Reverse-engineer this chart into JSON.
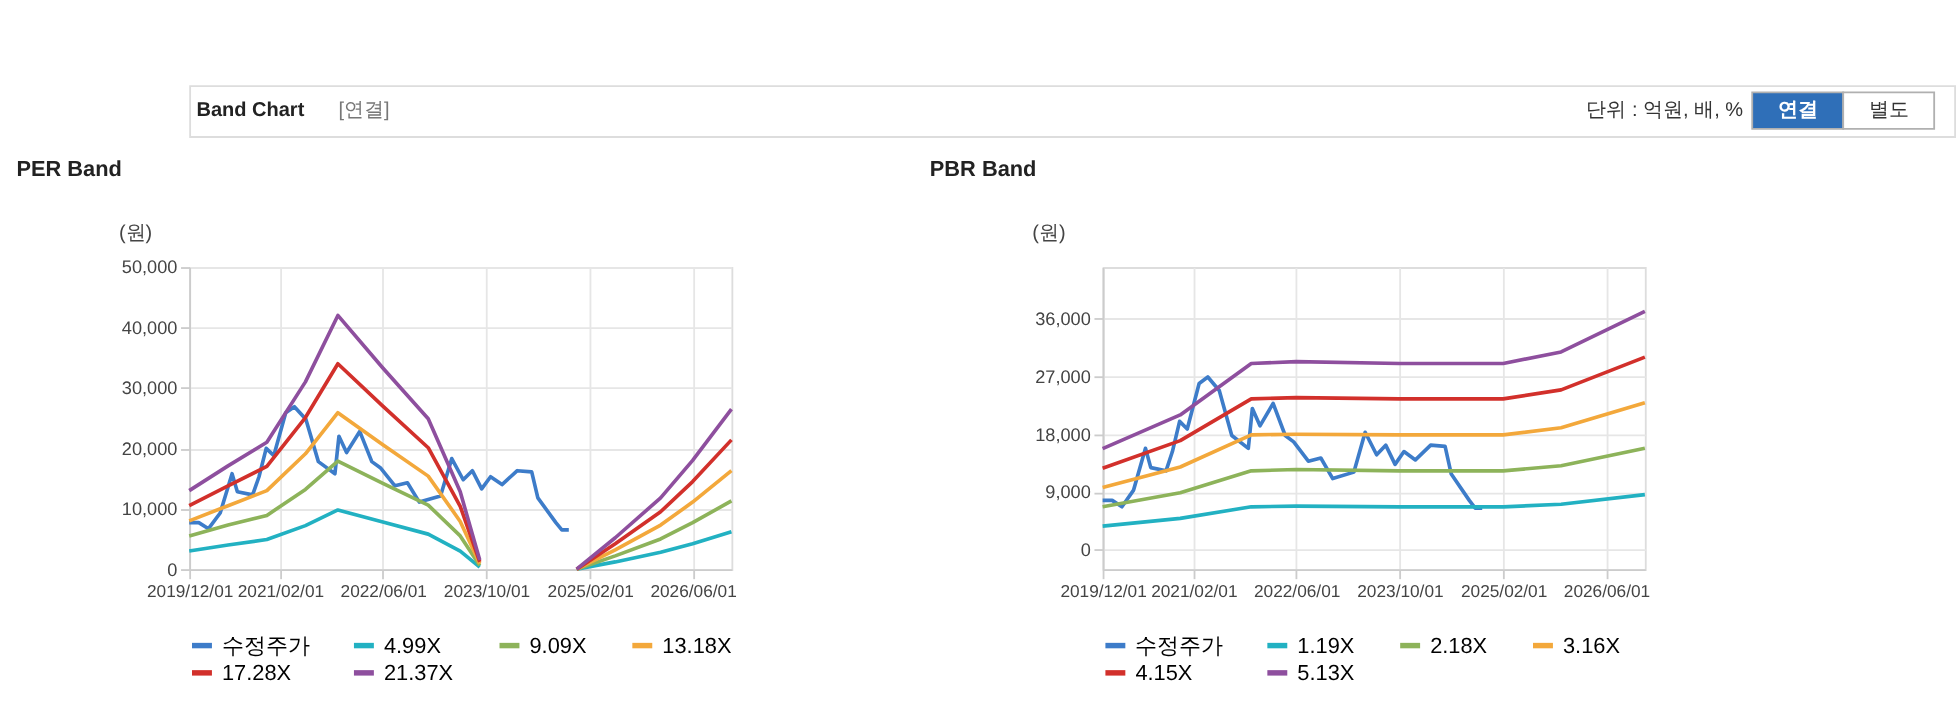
{
  "chart_data": [
    {
      "type": "line",
      "title": "PER Band",
      "ylabel": "(원)",
      "annotations": [
        "Band Chart",
        "[연결]",
        "단위 : 억원, 배, %",
        "연결",
        "별도"
      ],
      "x": [
        "2019-12-01",
        "2020-06-01",
        "2020-12-01",
        "2021-06-01",
        "2021-11-01",
        "2022-06-01",
        "2023-01-01",
        "2023-06-01",
        "2023-09-01",
        "2024-04-01",
        "2024-12-01",
        "2025-06-01",
        "2026-01-01",
        "2026-06-01",
        "2026-12-01"
      ],
      "series": [
        {
          "name": "수정주가",
          "color": "#3d7cc9",
          "x": [
            "2019-12-01",
            "2020-01-15",
            "2020-03-01",
            "2020-04-25",
            "2020-06-20",
            "2020-07-15",
            "2020-09-25",
            "2020-10-25",
            "2020-11-28",
            "2021-01-03",
            "2021-02-28",
            "2021-04-10",
            "2021-06-03",
            "2021-08-01",
            "2021-10-18",
            "2021-11-06",
            "2021-12-12",
            "2022-02-12",
            "2022-04-10",
            "2022-05-20",
            "2022-07-28",
            "2022-09-25",
            "2022-11-20",
            "2023-02-28",
            "2023-04-22",
            "2023-06-15",
            "2023-07-28",
            "2023-09-10",
            "2023-10-22",
            "2023-12-15",
            "2024-02-25",
            "2024-05-03",
            "2024-06-01",
            "2024-08-25",
            "2024-09-22",
            "2024-10-25"
          ],
          "values": [
            7700,
            7700,
            6700,
            9300,
            15800,
            12800,
            12300,
            15300,
            20000,
            18800,
            25900,
            26900,
            24800,
            17800,
            15800,
            22000,
            19300,
            22800,
            17800,
            16800,
            13800,
            14300,
            11100,
            12100,
            18300,
            14800,
            16300,
            13300,
            15300,
            14000,
            16300,
            16100,
            11800,
            7700,
            6500,
            6500
          ]
        },
        {
          "name": "4.99X",
          "color": "#22b1c2",
          "values": [
            3000,
            4000,
            4900,
            7200,
            9800,
            7800,
            5800,
            3000,
            350,
            null,
            0,
            1200,
            2800,
            4200,
            6200
          ]
        },
        {
          "name": "9.09X",
          "color": "#8db35a",
          "values": [
            5500,
            7300,
            8900,
            13200,
            17900,
            14200,
            10600,
            5500,
            600,
            null,
            0,
            2200,
            5000,
            7700,
            11300
          ]
        },
        {
          "name": "13.18X",
          "color": "#f3a83b",
          "values": [
            8000,
            10500,
            13000,
            19100,
            25900,
            20600,
            15400,
            7900,
            900,
            null,
            0,
            3200,
            7300,
            11100,
            16300
          ]
        },
        {
          "name": "17.28X",
          "color": "#d2302b",
          "values": [
            10500,
            13800,
            17000,
            25100,
            34000,
            27000,
            20100,
            10400,
            1200,
            null,
            0,
            4200,
            9500,
            14500,
            21400
          ]
        },
        {
          "name": "21.37X",
          "color": "#8e4f9e",
          "values": [
            13000,
            17100,
            21000,
            31000,
            42000,
            33300,
            24900,
            12800,
            1500,
            null,
            0,
            5200,
            11800,
            18000,
            26500
          ]
        }
      ],
      "xlim": [
        "2019-12-01",
        "2026-12-01"
      ],
      "xticks": [
        {
          "value": "2019-12-01",
          "label": "2019/12/01"
        },
        {
          "value": "2021-02-01",
          "label": "2021/02/01"
        },
        {
          "value": "2022-06-01",
          "label": "2022/06/01"
        },
        {
          "value": "2023-10-01",
          "label": "2023/10/01"
        },
        {
          "value": "2025-02-01",
          "label": "2025/02/01"
        },
        {
          "value": "2026-06-01",
          "label": "2026/06/01"
        }
      ],
      "ylim": [
        0,
        50000
      ],
      "yticks": [
        0,
        {
          "value": 10000,
          "label": "10,000"
        },
        {
          "value": 20000,
          "label": "20,000"
        },
        {
          "value": 30000,
          "label": "30,000"
        },
        {
          "value": 40000,
          "label": "40,000"
        },
        {
          "value": 50000,
          "label": "50,000"
        }
      ],
      "grid": true,
      "legend": "bottom"
    },
    {
      "type": "line",
      "title": "PBR Band",
      "ylabel": "(원)",
      "x": [
        "2019-12-01",
        "2020-12-01",
        "2021-11-01",
        "2022-06-01",
        "2023-10-01",
        "2025-02-01",
        "2025-11-01",
        "2026-12-01"
      ],
      "series": [
        {
          "name": "수정주가",
          "color": "#3d7cc9",
          "x": [
            "2019-12-01",
            "2020-01-15",
            "2020-03-01",
            "2020-04-25",
            "2020-06-20",
            "2020-07-15",
            "2020-09-25",
            "2020-10-25",
            "2020-11-28",
            "2021-01-03",
            "2021-02-28",
            "2021-04-10",
            "2021-06-03",
            "2021-08-01",
            "2021-10-18",
            "2021-11-06",
            "2021-12-12",
            "2022-02-12",
            "2022-04-10",
            "2022-05-20",
            "2022-07-28",
            "2022-09-25",
            "2022-11-20",
            "2023-02-28",
            "2023-04-22",
            "2023-06-15",
            "2023-07-28",
            "2023-09-10",
            "2023-10-22",
            "2023-12-15",
            "2024-02-25",
            "2024-05-03",
            "2024-06-01",
            "2024-08-25",
            "2024-09-22",
            "2024-10-25"
          ],
          "values": [
            7700,
            7700,
            6700,
            9300,
            15800,
            12800,
            12300,
            15300,
            20000,
            18800,
            25900,
            26900,
            24800,
            17800,
            15800,
            22000,
            19300,
            22800,
            17800,
            16800,
            13800,
            14300,
            11100,
            12100,
            18300,
            14800,
            16300,
            13300,
            15300,
            14000,
            16300,
            16100,
            11800,
            7700,
            6500,
            6500
          ]
        },
        {
          "name": "1.19X",
          "color": "#22b1c2",
          "values": [
            3700,
            4900,
            6700,
            6800,
            6700,
            6700,
            7100,
            8600
          ]
        },
        {
          "name": "2.18X",
          "color": "#8db35a",
          "values": [
            6700,
            8900,
            12300,
            12500,
            12300,
            12300,
            13100,
            15800
          ]
        },
        {
          "name": "3.16X",
          "color": "#f3a83b",
          "values": [
            9700,
            12900,
            17900,
            18000,
            17900,
            17900,
            19000,
            22900
          ]
        },
        {
          "name": "4.15X",
          "color": "#d2302b",
          "values": [
            12700,
            17000,
            23500,
            23700,
            23500,
            23500,
            24900,
            30000
          ]
        },
        {
          "name": "5.13X",
          "color": "#8e4f9e",
          "values": [
            15750,
            21000,
            29000,
            29300,
            29000,
            29000,
            30800,
            37100
          ]
        }
      ],
      "xlim": [
        "2019-12-01",
        "2026-12-01"
      ],
      "xticks": [
        {
          "value": "2019-12-01",
          "label": "2019/12/01"
        },
        {
          "value": "2021-02-01",
          "label": "2021/02/01"
        },
        {
          "value": "2022-06-01",
          "label": "2022/06/01"
        },
        {
          "value": "2023-10-01",
          "label": "2023/10/01"
        },
        {
          "value": "2025-02-01",
          "label": "2025/02/01"
        },
        {
          "value": "2026-06-01",
          "label": "2026/06/01"
        }
      ],
      "ylim": [
        -3000,
        44000
      ],
      "yticks": [
        0,
        {
          "value": 9000,
          "label": "9,000"
        },
        {
          "value": 18000,
          "label": "18,000"
        },
        {
          "value": 27000,
          "label": "27,000"
        },
        {
          "value": 36000,
          "label": "36,000"
        }
      ],
      "grid": true,
      "legend": "bottom"
    }
  ]
}
